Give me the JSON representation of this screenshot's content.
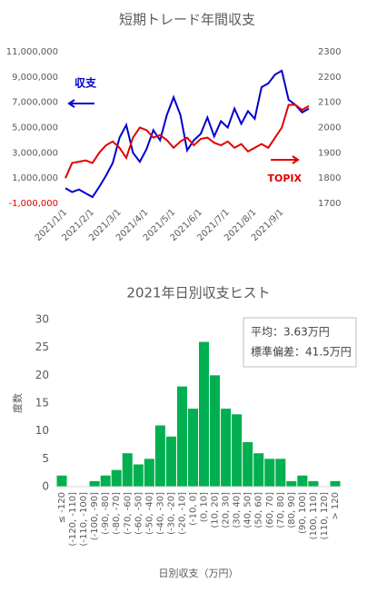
{
  "chart_data": [
    {
      "type": "line",
      "title": "短期トレード年間収支",
      "categories": [
        "2021/1/1",
        null,
        null,
        null,
        "2021/2/1",
        null,
        null,
        null,
        "2021/3/1",
        null,
        null,
        null,
        "2021/4/1",
        null,
        null,
        null,
        "2021/5/1",
        null,
        null,
        null,
        "2021/6/1",
        null,
        null,
        null,
        "2021/7/1",
        null,
        null,
        null,
        "2021/8/1",
        null,
        null,
        null,
        "2021/9/1",
        null,
        null,
        null,
        null
      ],
      "series": [
        {
          "name": "収支",
          "color": "#0000cc",
          "values": [
            200000,
            -100000,
            100000,
            -200000,
            -500000,
            300000,
            1200000,
            2200000,
            4200000,
            5200000,
            3000000,
            2300000,
            3300000,
            4800000,
            4000000,
            6000000,
            7400000,
            6000000,
            3200000,
            4000000,
            4500000,
            5800000,
            4300000,
            5500000,
            5000000,
            6500000,
            5300000,
            6300000,
            5700000,
            8200000,
            8500000,
            9200000,
            9500000,
            7200000,
            6800000,
            6200000,
            6500000
          ]
        },
        {
          "name": "TOPIX",
          "color": "#e00000",
          "axis": "y2",
          "values": [
            1800,
            1860,
            1865,
            1870,
            1860,
            1900,
            1930,
            1945,
            1920,
            1880,
            1960,
            2000,
            1990,
            1960,
            1970,
            1950,
            1920,
            1945,
            1960,
            1930,
            1955,
            1960,
            1940,
            1930,
            1945,
            1920,
            1935,
            1905,
            1920,
            1935,
            1920,
            1960,
            2000,
            2090,
            2090,
            2070,
            2085
          ]
        }
      ],
      "ylim": [
        -1000000,
        11000000
      ],
      "yticks": [
        {
          "value": -1000000,
          "label": "-1,000,000"
        },
        {
          "value": 1000000,
          "label": "1,000,000"
        },
        {
          "value": 3000000,
          "label": "3,000,000"
        },
        {
          "value": 5000000,
          "label": "5,000,000"
        },
        {
          "value": 7000000,
          "label": "7,000,000"
        },
        {
          "value": 9000000,
          "label": "9,000,000"
        },
        {
          "value": 11000000,
          "label": "11,000,000"
        }
      ],
      "y2lim": [
        1700,
        2300
      ],
      "y2ticks": [
        1700,
        1800,
        1900,
        2000,
        2100,
        2200,
        2300
      ],
      "grid": false
    },
    {
      "type": "bar",
      "title": "2021年日別収支ヒスト",
      "categories": [
        "≤ -120",
        "(-120, -110]",
        "(-110, -100]",
        "(-100, -90]",
        "(-90, -80]",
        "(-80, -70]",
        "(-70, -60]",
        "(-60, -50]",
        "(-50, -40]",
        "(-40, -30]",
        "(-30, -20]",
        "(-20, -10]",
        "(-10, 0]",
        "(0, 10]",
        "(10, 20]",
        "(20, 30]",
        "(30, 40]",
        "(40, 50]",
        "(50, 60]",
        "(60, 70]",
        "(70, 80]",
        "(80, 90]",
        "(90, 100]",
        "(100, 110]",
        "(110, 120]",
        "> 120"
      ],
      "values": [
        2,
        0,
        0,
        1,
        2,
        3,
        6,
        4,
        5,
        11,
        9,
        18,
        14,
        26,
        20,
        14,
        13,
        8,
        6,
        5,
        5,
        1,
        2,
        1,
        0,
        1
      ],
      "color": "#00b050",
      "ylim": [
        0,
        30
      ],
      "yticks": [
        0,
        5,
        10,
        15,
        20,
        25,
        30
      ],
      "xlabel": "日別収支（万円）",
      "ylabel": "度数",
      "annotations": [
        "平均：3.63万円",
        "標準偏差：41.5万円"
      ],
      "grid": false
    }
  ]
}
